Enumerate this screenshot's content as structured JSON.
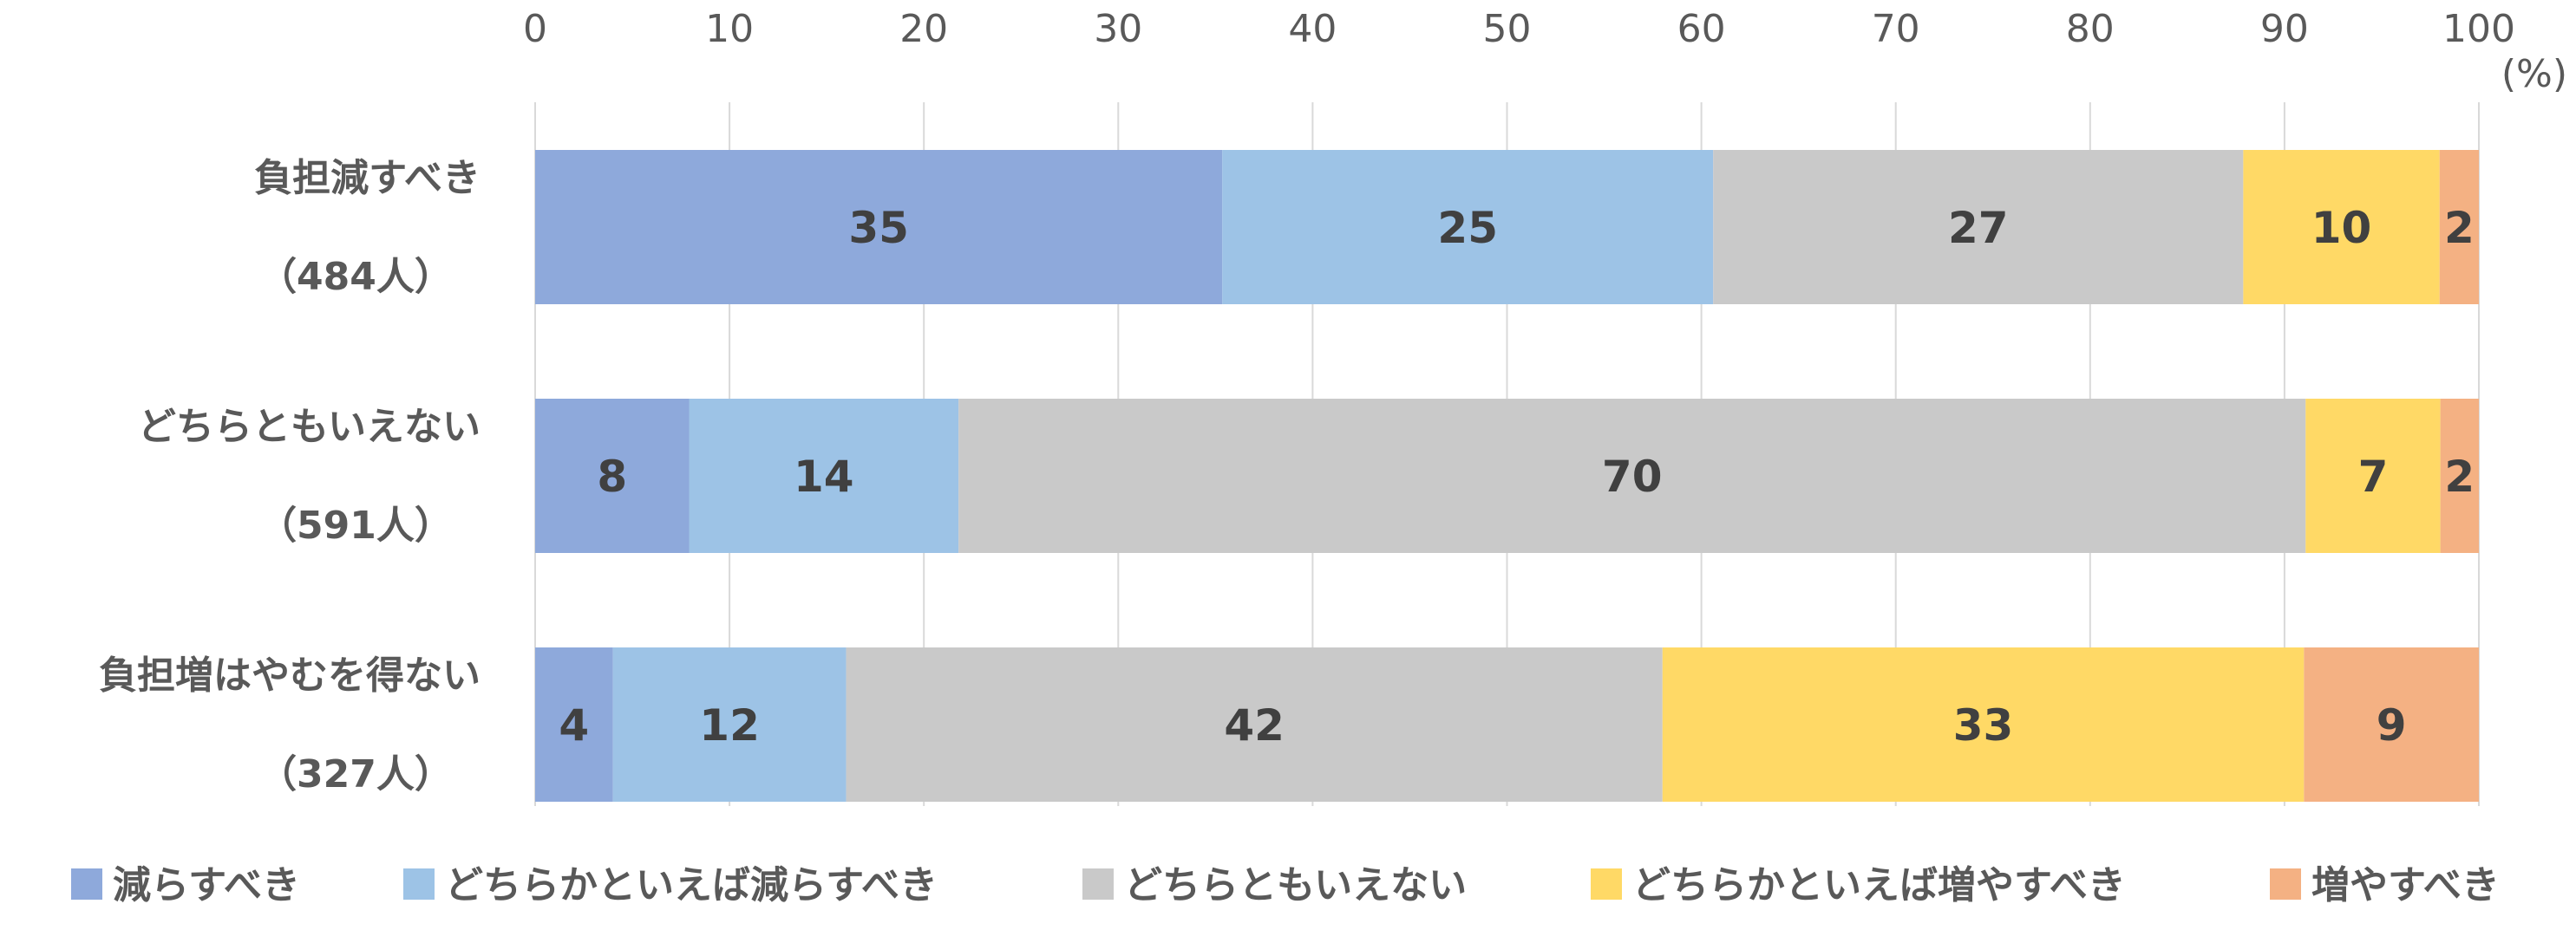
{
  "chart_data": {
    "type": "bar",
    "orientation": "horizontal",
    "stacked": true,
    "unit_label": "(%)",
    "xlim": [
      0,
      100
    ],
    "x_ticks": [
      0,
      10,
      20,
      30,
      40,
      50,
      60,
      70,
      80,
      90,
      100
    ],
    "grid": true,
    "legend_position": "bottom",
    "categories": [
      {
        "line1": "負担減すべき",
        "line2": "（484人）"
      },
      {
        "line1": "どちらともいえない",
        "line2": "（591人）"
      },
      {
        "line1": "負担増はやむを得ない",
        "line2": "（327人）"
      }
    ],
    "series": [
      {
        "name": "減らすべき",
        "color": "#8EA9DB",
        "values": [
          35,
          8,
          4
        ]
      },
      {
        "name": "どちらかといえば減らすべき",
        "color": "#9DC3E6",
        "values": [
          25,
          14,
          12
        ]
      },
      {
        "name": "どちらともいえない",
        "color": "#C9C9C9",
        "values": [
          27,
          70,
          42
        ]
      },
      {
        "name": "どちらかといえば増やすべき",
        "color": "#FFD966",
        "values": [
          10,
          7,
          33
        ]
      },
      {
        "name": "増やすべき",
        "color": "#F4B183",
        "values": [
          2,
          2,
          9
        ]
      }
    ]
  }
}
